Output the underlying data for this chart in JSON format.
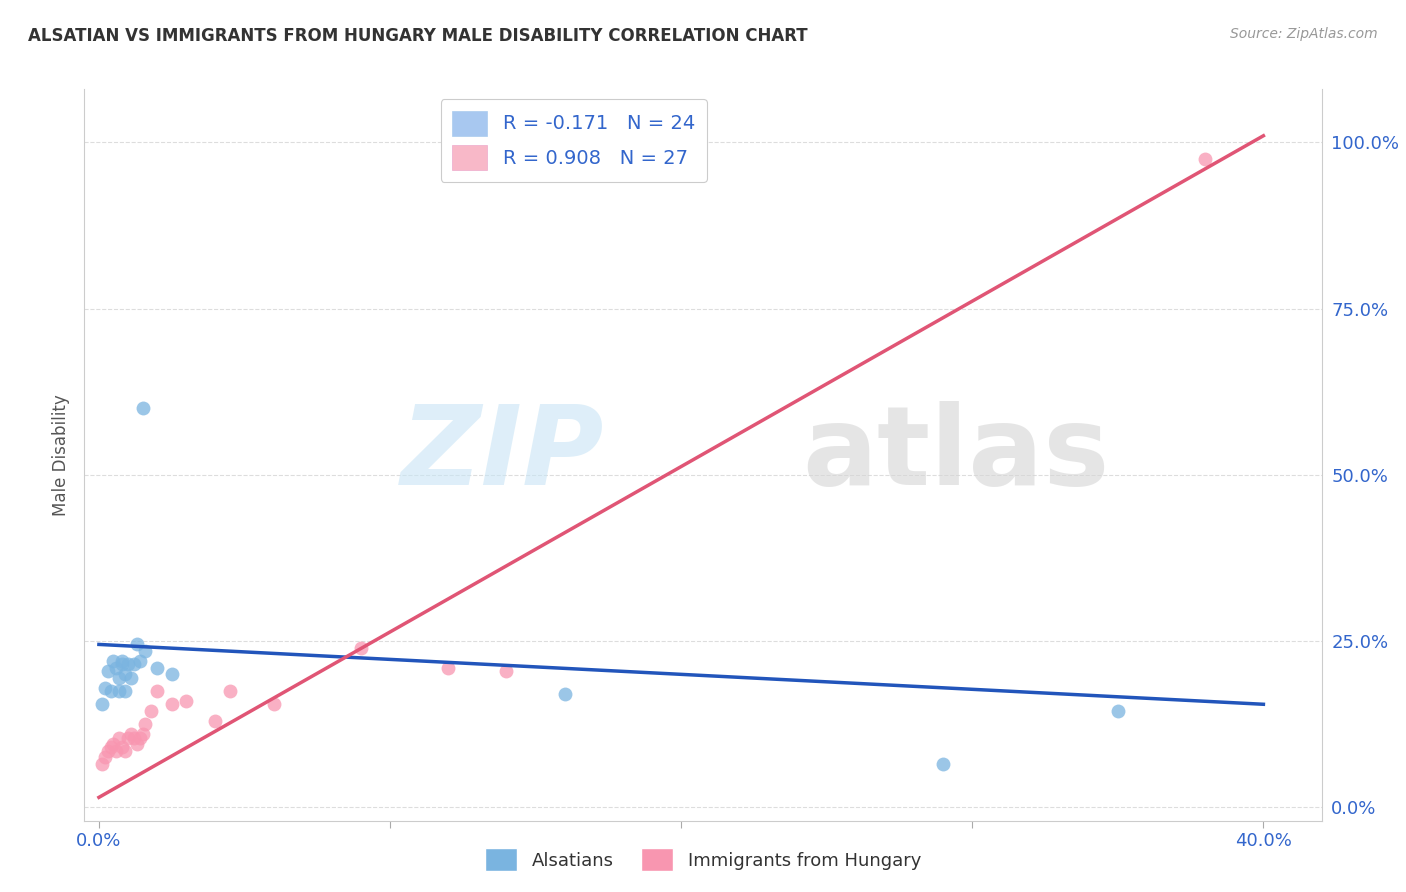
{
  "title": "ALSATIAN VS IMMIGRANTS FROM HUNGARY MALE DISABILITY CORRELATION CHART",
  "source": "Source: ZipAtlas.com",
  "ylabel": "Male Disability",
  "ytick_labels": [
    "0.0%",
    "25.0%",
    "50.0%",
    "75.0%",
    "100.0%"
  ],
  "ytick_values": [
    0,
    0.25,
    0.5,
    0.75,
    1.0
  ],
  "xtick_values": [
    0.0,
    0.1,
    0.2,
    0.3,
    0.4
  ],
  "xtick_labels": [
    "0.0%",
    "",
    "",
    "",
    "40.0%"
  ],
  "xlim": [
    -0.005,
    0.42
  ],
  "ylim": [
    -0.02,
    1.08
  ],
  "legend_entries": [
    {
      "label": "R = -0.171   N = 24",
      "color": "#a8c8f0"
    },
    {
      "label": "R = 0.908   N = 27",
      "color": "#f8b8c8"
    }
  ],
  "alsatians_color": "#7ab4e0",
  "hungary_color": "#f896b0",
  "alsatians_label": "Alsatians",
  "hungary_label": "Immigrants from Hungary",
  "blue_line_color": "#2255bb",
  "pink_line_color": "#e05575",
  "alsatians_x": [
    0.001,
    0.002,
    0.003,
    0.004,
    0.005,
    0.006,
    0.007,
    0.007,
    0.008,
    0.008,
    0.009,
    0.009,
    0.01,
    0.011,
    0.012,
    0.013,
    0.014,
    0.015,
    0.016,
    0.02,
    0.025,
    0.16,
    0.29,
    0.35
  ],
  "alsatians_y": [
    0.155,
    0.18,
    0.205,
    0.175,
    0.22,
    0.21,
    0.195,
    0.175,
    0.22,
    0.215,
    0.2,
    0.175,
    0.215,
    0.195,
    0.215,
    0.245,
    0.22,
    0.6,
    0.235,
    0.21,
    0.2,
    0.17,
    0.065,
    0.145
  ],
  "hungary_x": [
    0.001,
    0.002,
    0.003,
    0.004,
    0.005,
    0.006,
    0.007,
    0.008,
    0.009,
    0.01,
    0.011,
    0.012,
    0.013,
    0.014,
    0.015,
    0.016,
    0.018,
    0.02,
    0.025,
    0.03,
    0.04,
    0.045,
    0.06,
    0.09,
    0.12,
    0.14,
    0.38
  ],
  "hungary_y": [
    0.065,
    0.075,
    0.085,
    0.09,
    0.095,
    0.085,
    0.105,
    0.09,
    0.085,
    0.105,
    0.11,
    0.105,
    0.095,
    0.105,
    0.11,
    0.125,
    0.145,
    0.175,
    0.155,
    0.16,
    0.13,
    0.175,
    0.155,
    0.24,
    0.21,
    0.205,
    0.975
  ],
  "blue_line_x": [
    0.0,
    0.4
  ],
  "blue_line_y": [
    0.245,
    0.155
  ],
  "pink_line_x": [
    0.0,
    0.4
  ],
  "pink_line_y": [
    0.015,
    1.01
  ]
}
